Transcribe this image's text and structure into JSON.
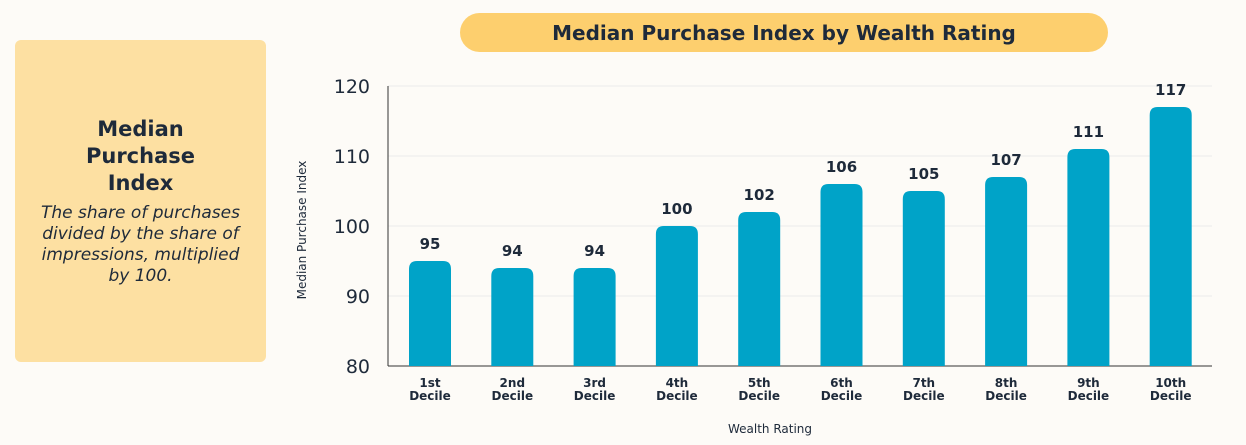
{
  "info": {
    "title": "Median Purchase Index",
    "description": "The share of purchases divided by the share of impressions, multiplied by 100."
  },
  "chart_data": {
    "type": "bar",
    "title": "Median Purchase Index by Wealth Rating",
    "xlabel": "Wealth Rating",
    "ylabel": "Median Purchase Index",
    "categories": [
      [
        "1st",
        "Decile"
      ],
      [
        "2nd",
        "Decile"
      ],
      [
        "3rd",
        "Decile"
      ],
      [
        "4th",
        "Decile"
      ],
      [
        "5th",
        "Decile"
      ],
      [
        "6th",
        "Decile"
      ],
      [
        "7th",
        "Decile"
      ],
      [
        "8th",
        "Decile"
      ],
      [
        "9th",
        "Decile"
      ],
      [
        "10th",
        "Decile"
      ]
    ],
    "values": [
      95,
      94,
      94,
      100,
      102,
      106,
      105,
      107,
      111,
      117
    ],
    "ylim": [
      80,
      120
    ],
    "yticks": [
      80,
      90,
      100,
      110,
      120
    ],
    "grid": true,
    "bar_color": "#00a3c8"
  }
}
